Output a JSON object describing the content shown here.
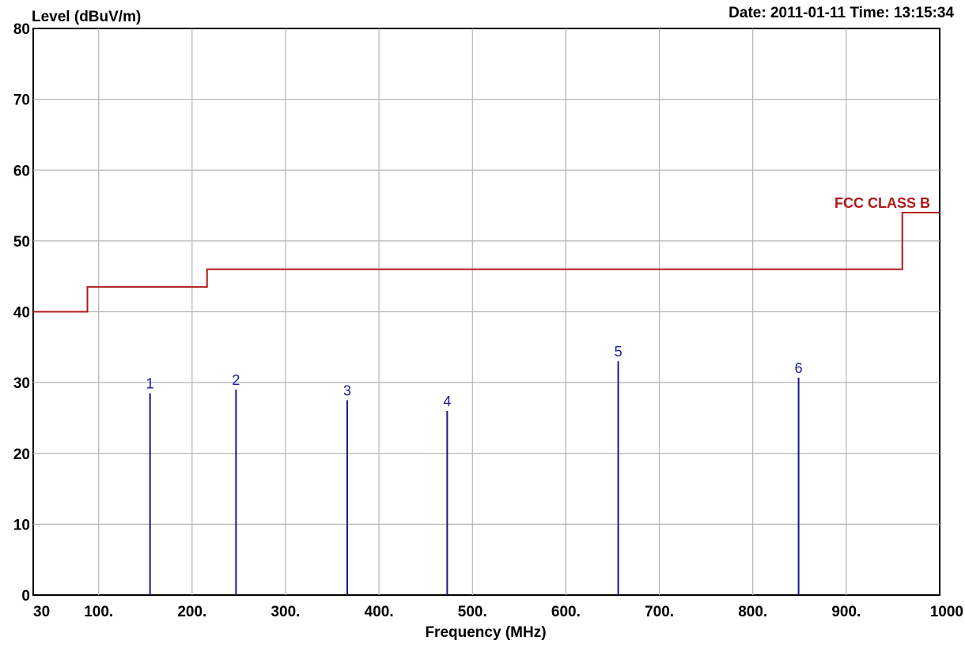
{
  "header": {
    "date_time": "Date: 2011-01-11  Time: 13:15:34"
  },
  "chart_data": {
    "type": "bar",
    "ylabel": "Level (dBuV/m)",
    "xlabel": "Frequency (MHz)",
    "ylim": [
      0,
      80
    ],
    "xlim": [
      30,
      1000
    ],
    "y_ticks": [
      0,
      10,
      20,
      30,
      40,
      50,
      60,
      70,
      80
    ],
    "x_ticks": [
      {
        "value": 30,
        "label": "30"
      },
      {
        "value": 100,
        "label": "100."
      },
      {
        "value": 200,
        "label": "200."
      },
      {
        "value": 300,
        "label": "300."
      },
      {
        "value": 400,
        "label": "400."
      },
      {
        "value": 500,
        "label": "500."
      },
      {
        "value": 600,
        "label": "600."
      },
      {
        "value": 700,
        "label": "700."
      },
      {
        "value": 800,
        "label": "800."
      },
      {
        "value": 900,
        "label": "900."
      },
      {
        "value": 1000,
        "label": "1000"
      }
    ],
    "grid": true,
    "limit_line": {
      "name": "FCC CLASS B",
      "color": "#b01818",
      "points": [
        [
          30,
          40
        ],
        [
          88,
          40
        ],
        [
          88,
          43.5
        ],
        [
          216,
          43.5
        ],
        [
          216,
          46
        ],
        [
          960,
          46
        ],
        [
          960,
          54
        ],
        [
          1000,
          54
        ]
      ]
    },
    "measurements": {
      "color": "#1a1a80",
      "labels": [
        "1",
        "2",
        "3",
        "4",
        "5",
        "6"
      ],
      "frequencies": [
        155,
        247,
        366,
        473,
        656,
        849
      ],
      "levels": [
        28.5,
        29,
        27.5,
        26,
        33,
        30.7
      ]
    }
  }
}
